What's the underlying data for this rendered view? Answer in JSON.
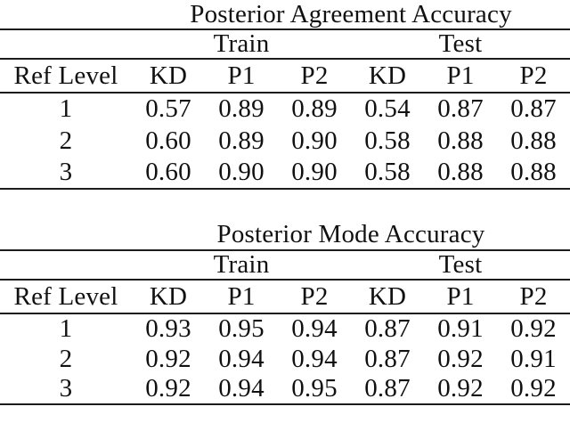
{
  "colors": {
    "background": "#ffffff",
    "text": "#111111",
    "rule": "#1c1c1c"
  },
  "tables": [
    {
      "title": "Posterior Agreement Accuracy",
      "group_headers": {
        "train": "Train",
        "test": "Test"
      },
      "columns": [
        "Ref Level",
        "KD",
        "P1",
        "P2",
        "KD",
        "P1",
        "P2"
      ],
      "rows": [
        [
          "1",
          "0.57",
          "0.89",
          "0.89",
          "0.54",
          "0.87",
          "0.87"
        ],
        [
          "2",
          "0.60",
          "0.89",
          "0.90",
          "0.58",
          "0.88",
          "0.88"
        ],
        [
          "3",
          "0.60",
          "0.90",
          "0.90",
          "0.58",
          "0.88",
          "0.88"
        ]
      ]
    },
    {
      "title": "Posterior Mode Accuracy",
      "group_headers": {
        "train": "Train",
        "test": "Test"
      },
      "columns": [
        "Ref Level",
        "KD",
        "P1",
        "P2",
        "KD",
        "P1",
        "P2"
      ],
      "rows": [
        [
          "1",
          "0.93",
          "0.95",
          "0.94",
          "0.87",
          "0.91",
          "0.92"
        ],
        [
          "2",
          "0.92",
          "0.94",
          "0.94",
          "0.87",
          "0.92",
          "0.91"
        ],
        [
          "3",
          "0.92",
          "0.94",
          "0.95",
          "0.87",
          "0.92",
          "0.92"
        ]
      ]
    }
  ]
}
